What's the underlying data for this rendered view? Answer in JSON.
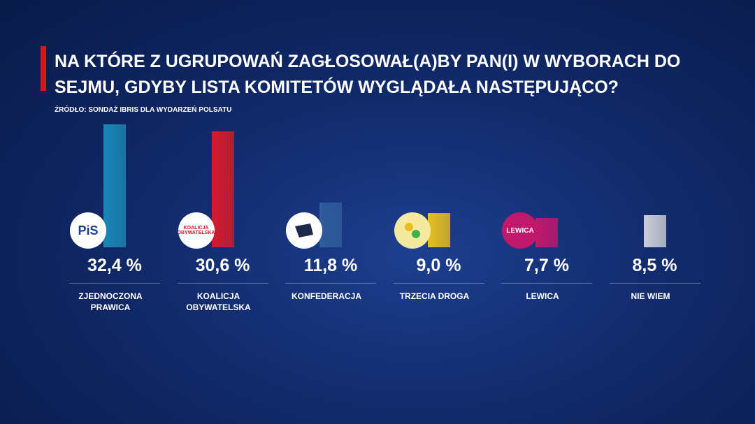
{
  "chart_data": {
    "type": "bar",
    "title": "NA KTÓRE Z UGRUPOWAŃ ZAGŁOSOWAŁ(A)BY PAN(I) W WYBORACH DO SEJMU, GDYBY LISTA KOMITETÓW WYGLĄDAŁA NASTĘPUJĄCO?",
    "subtitle": "ŹRÓDŁO: SONDAŻ IBRIS DLA WYDARZEŃ POLSATU",
    "categories": [
      "ZJEDNOCZONA PRAWICA",
      "KOALICJA OBYWATELSKA",
      "KONFEDERACJA",
      "TRZECIA DROGA",
      "LEWICA",
      "NIE WIEM"
    ],
    "logo_labels": [
      "PiS",
      "KOALICJA OBYWATELSKA",
      null,
      null,
      "LEWICA",
      null
    ],
    "values": [
      32.4,
      30.6,
      11.8,
      9.0,
      7.7,
      8.5
    ],
    "value_labels": [
      "32,4 %",
      "30,6 %",
      "11,8 %",
      "9,0 %",
      "7,7 %",
      "8,5 %"
    ],
    "colors": [
      "#1b86b5",
      "#d71a2b",
      "#2f5c9c",
      "#e6bf1e",
      "#c2186c",
      "#c9cdd5"
    ]
  }
}
